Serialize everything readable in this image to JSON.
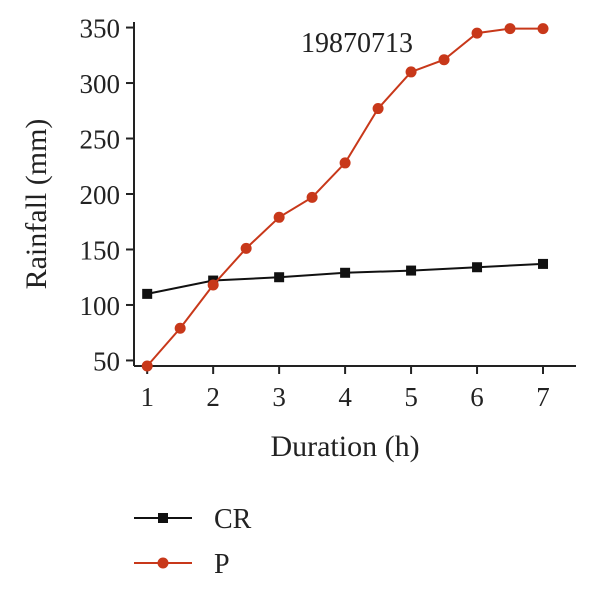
{
  "chart_data": {
    "type": "line",
    "title": "",
    "annotation": "19870713",
    "xlabel": "Duration (h)",
    "ylabel": "Rainfall (mm)",
    "xlim": [
      0.8,
      7.5
    ],
    "ylim": [
      45,
      355
    ],
    "x_ticks": [
      1,
      2,
      3,
      4,
      5,
      6,
      7
    ],
    "y_ticks": [
      50,
      100,
      150,
      200,
      250,
      300,
      350
    ],
    "grid": false,
    "legend_position": "bottom-left",
    "series": [
      {
        "name": "CR",
        "color": "#111111",
        "marker": "square",
        "x": [
          1,
          2,
          3,
          4,
          5,
          6,
          7
        ],
        "y": [
          110,
          122,
          125,
          129,
          131,
          134,
          137
        ]
      },
      {
        "name": "P",
        "color": "#c8381a",
        "marker": "circle",
        "x": [
          1,
          1.5,
          2,
          2.5,
          3,
          3.5,
          4,
          4.5,
          5,
          5.5,
          6,
          6.5,
          7
        ],
        "y": [
          45,
          79,
          118,
          151,
          179,
          197,
          228,
          277,
          310,
          321,
          345,
          349,
          349
        ]
      }
    ]
  }
}
